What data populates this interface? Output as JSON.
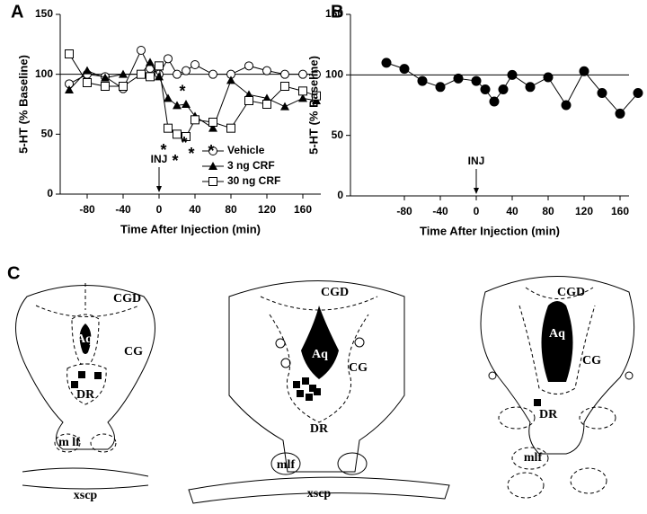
{
  "panel_labels": [
    "A",
    "B",
    "C"
  ],
  "chart_data": [
    {
      "type": "line",
      "xlabel": "Time After Injection (min)",
      "ylabel": "5-HT (% Baseline)",
      "x": [
        -100,
        -80,
        -60,
        -40,
        -20,
        -10,
        0,
        10,
        20,
        30,
        40,
        60,
        80,
        100,
        120,
        140,
        160,
        175
      ],
      "series": [
        {
          "name": "Vehicle",
          "color": "#000000",
          "marker": "open-circle",
          "values": [
            92,
            100,
            98,
            88,
            120,
            105,
            100,
            113,
            100,
            103,
            108,
            100,
            100,
            107,
            103,
            100,
            100,
            100
          ]
        },
        {
          "name": "3 ng CRF",
          "color": "#000000",
          "marker": "filled-triangle",
          "values": [
            87,
            103,
            97,
            100,
            100,
            110,
            98,
            80,
            74,
            75,
            65,
            55,
            95,
            83,
            80,
            73,
            80,
            78
          ]
        },
        {
          "name": "30 ng CRF",
          "color": "#000000",
          "marker": "open-square",
          "values": [
            117,
            93,
            90,
            90,
            100,
            98,
            107,
            55,
            50,
            48,
            62,
            60,
            55,
            78,
            75,
            90,
            86,
            82
          ]
        }
      ],
      "xlim": [
        -110,
        180
      ],
      "xticks": [
        -80,
        -40,
        0,
        40,
        80,
        120,
        160
      ],
      "ylim": [
        0,
        150
      ],
      "yticks": [
        0,
        50,
        100,
        150
      ],
      "hline": 100,
      "arrow_label": "INJ",
      "arrow_x": 0,
      "annotations": [
        {
          "text": "*",
          "x": 5,
          "y": 36
        },
        {
          "text": "*",
          "x": 18,
          "y": 27
        },
        {
          "text": "*",
          "x": 26,
          "y": 85
        },
        {
          "text": "*",
          "x": 28,
          "y": 42
        },
        {
          "text": "*",
          "x": 36,
          "y": 33
        },
        {
          "text": "*",
          "x": 58,
          "y": 35
        }
      ]
    },
    {
      "type": "line",
      "xlabel": "Time After Injection (min)",
      "ylabel": "5-HT (% Baseline)",
      "x": [
        -100,
        -80,
        -60,
        -40,
        -20,
        0,
        10,
        20,
        30,
        40,
        60,
        80,
        100,
        120,
        140,
        160,
        180
      ],
      "series": [
        {
          "color": "#000000",
          "marker": "filled-circle",
          "values": [
            110,
            105,
            95,
            90,
            97,
            95,
            88,
            78,
            88,
            100,
            90,
            98,
            75,
            103,
            85,
            68,
            85
          ]
        }
      ],
      "xlim": [
        -140,
        170
      ],
      "xticks": [
        -80,
        -40,
        0,
        40,
        80,
        120,
        160
      ],
      "ylim": [
        0,
        150
      ],
      "yticks": [
        0,
        50,
        100,
        150
      ],
      "hline": 100,
      "arrow_label": "INJ",
      "arrow_x": 0
    }
  ],
  "diagrams": [
    {
      "labels": [
        "CGD",
        "Aq",
        "CG",
        "DR",
        "m lf",
        "xscp"
      ]
    },
    {
      "labels": [
        "CGD",
        "Aq",
        "CG",
        "DR",
        "mlf",
        "xscp"
      ]
    },
    {
      "labels": [
        "CGD",
        "Aq",
        "CG",
        "DR",
        "mlf"
      ]
    }
  ]
}
